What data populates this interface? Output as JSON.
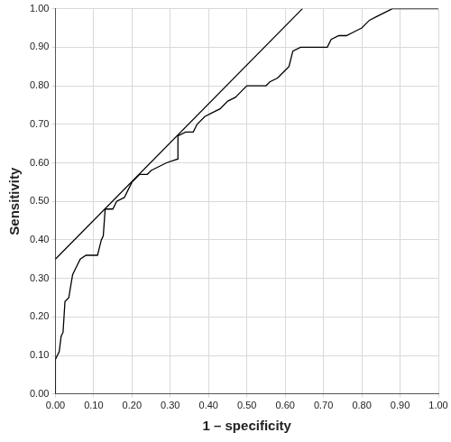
{
  "chart_data": {
    "type": "line",
    "x_label": "1 – specificity",
    "y_label": "Sensitivity",
    "xlim": [
      0,
      1
    ],
    "ylim": [
      0,
      1
    ],
    "xticks": [
      {
        "value": 0,
        "label": "0.00"
      },
      {
        "value": 0.1,
        "label": "0.10"
      },
      {
        "value": 0.2,
        "label": "0.20"
      },
      {
        "value": 0.3,
        "label": "0.30"
      },
      {
        "value": 0.4,
        "label": "0.40"
      },
      {
        "value": 0.5,
        "label": "0.50"
      },
      {
        "value": 0.6,
        "label": "0.60"
      },
      {
        "value": 0.7,
        "label": "0.70"
      },
      {
        "value": 0.8,
        "label": "0.80"
      },
      {
        "value": 0.9,
        "label": "0.90"
      },
      {
        "value": 1,
        "label": "1.00"
      }
    ],
    "yticks": [
      {
        "value": 0,
        "label": "0.00"
      },
      {
        "value": 0.1,
        "label": "0.10"
      },
      {
        "value": 0.2,
        "label": "0.20"
      },
      {
        "value": 0.3,
        "label": "0.30"
      },
      {
        "value": 0.4,
        "label": "0.40"
      },
      {
        "value": 0.5,
        "label": "0.50"
      },
      {
        "value": 0.6,
        "label": "0.60"
      },
      {
        "value": 0.7,
        "label": "0.70"
      },
      {
        "value": 0.8,
        "label": "0.80"
      },
      {
        "value": 0.9,
        "label": "0.90"
      },
      {
        "value": 1,
        "label": "1.00"
      }
    ],
    "grid": true,
    "series": [
      {
        "color": "#000000",
        "line_style": "solid",
        "x": [
          0,
          0,
          0.01,
          0.015,
          0.02,
          0.025,
          0.035,
          0.04,
          0.045,
          0.055,
          0.065,
          0.08,
          0.11,
          0.115,
          0.12,
          0.125,
          0.13,
          0.15,
          0.16,
          0.18,
          0.19,
          0.2,
          0.22,
          0.24,
          0.25,
          0.27,
          0.29,
          0.32,
          0.32,
          0.34,
          0.36,
          0.37,
          0.39,
          0.41,
          0.43,
          0.45,
          0.47,
          0.48,
          0.5,
          0.55,
          0.56,
          0.58,
          0.6,
          0.61,
          0.62,
          0.64,
          0.71,
          0.72,
          0.74,
          0.76,
          0.78,
          0.8,
          0.82,
          0.84,
          0.86,
          0.88,
          1
        ],
        "values": [
          0,
          0.09,
          0.11,
          0.15,
          0.16,
          0.24,
          0.25,
          0.28,
          0.31,
          0.33,
          0.35,
          0.36,
          0.36,
          0.38,
          0.4,
          0.41,
          0.48,
          0.48,
          0.5,
          0.51,
          0.53,
          0.55,
          0.57,
          0.57,
          0.58,
          0.59,
          0.6,
          0.61,
          0.67,
          0.68,
          0.68,
          0.7,
          0.72,
          0.73,
          0.74,
          0.76,
          0.77,
          0.78,
          0.8,
          0.8,
          0.81,
          0.82,
          0.84,
          0.85,
          0.89,
          0.9,
          0.9,
          0.92,
          0.93,
          0.93,
          0.94,
          0.95,
          0.97,
          0.98,
          0.99,
          1,
          1
        ]
      },
      {
        "color": "#000000",
        "line_style": "solid",
        "x": [
          0,
          0.645
        ],
        "values": [
          0.35,
          1
        ]
      }
    ]
  }
}
